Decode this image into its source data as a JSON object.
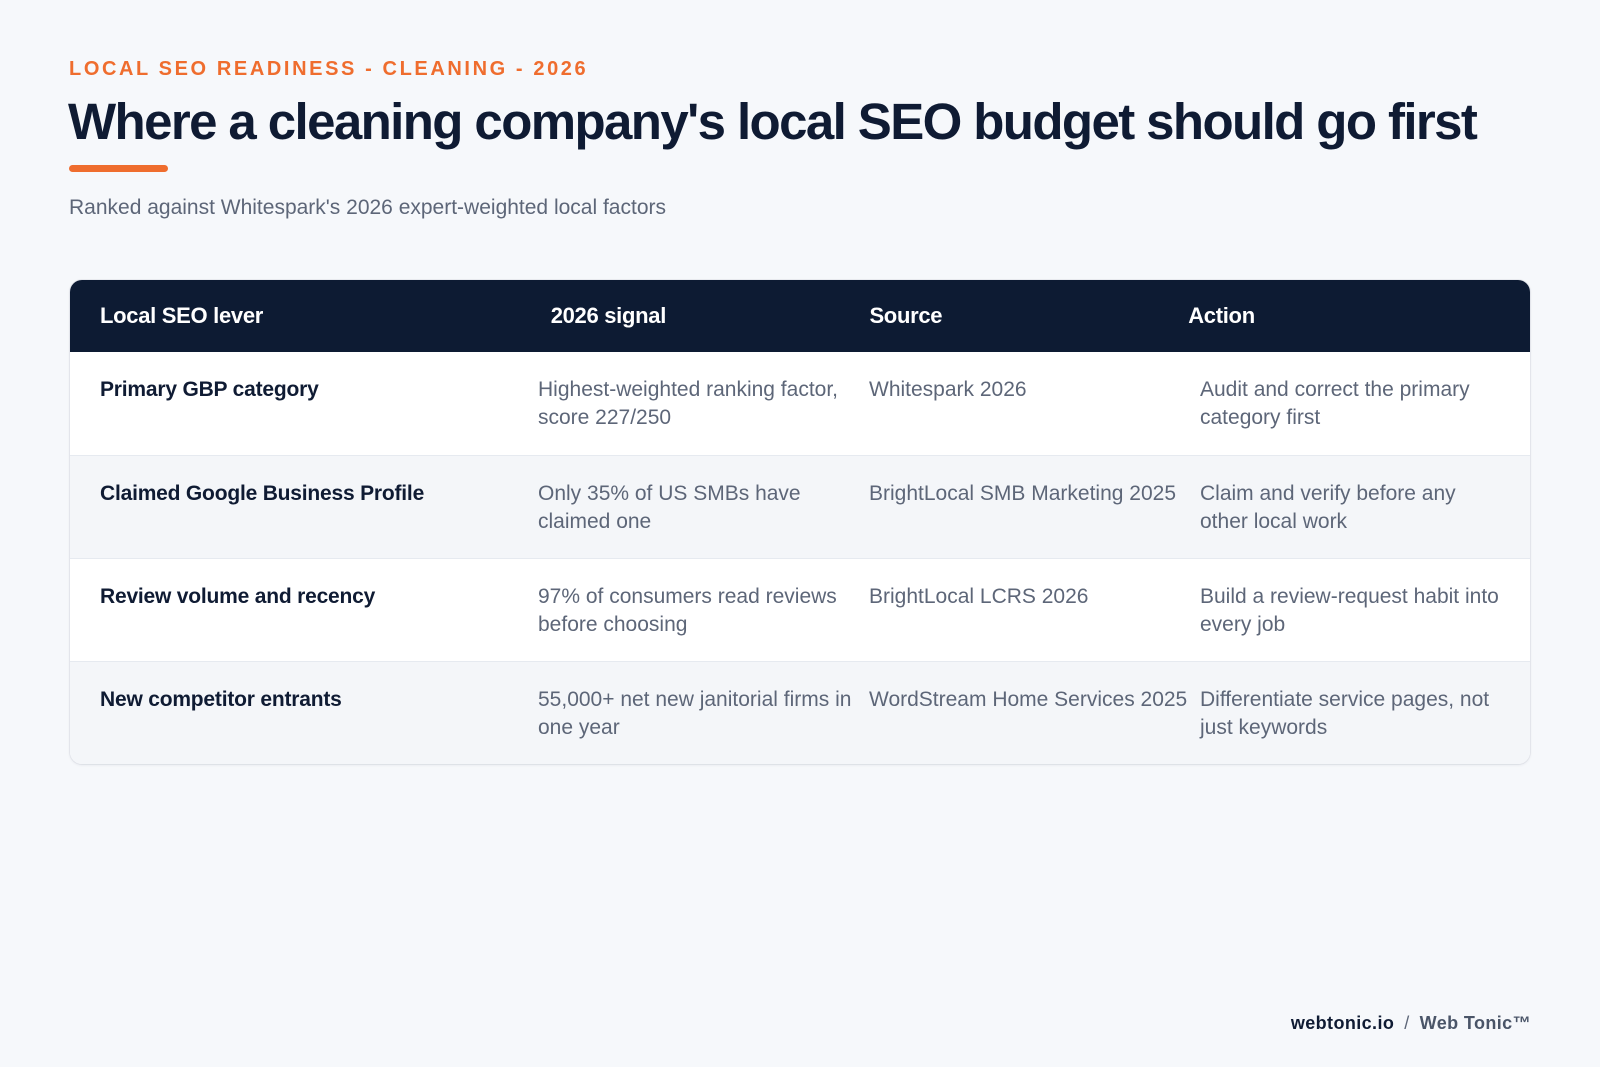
{
  "header": {
    "eyebrow": "LOCAL SEO READINESS - CLEANING - 2026",
    "title": "Where a cleaning company's local SEO budget should go first",
    "subtitle": "Ranked against Whitespark's 2026 expert-weighted local factors"
  },
  "table": {
    "columns": [
      "Local SEO lever",
      "2026 signal",
      "Source",
      "Action"
    ],
    "rows": [
      {
        "lever": "Primary GBP category",
        "signal": "Highest-weighted ranking factor, score 227/250",
        "source": "Whitespark 2026",
        "action": "Audit and correct the primary category first"
      },
      {
        "lever": "Claimed Google Business Profile",
        "signal": "Only 35% of US SMBs have claimed one",
        "source": "BrightLocal SMB Marketing 2025",
        "action": "Claim and verify before any other local work"
      },
      {
        "lever": "Review volume and recency",
        "signal": "97% of consumers read reviews before choosing",
        "source": "BrightLocal LCRS 2026",
        "action": "Build a review-request habit into every job"
      },
      {
        "lever": "New competitor entrants",
        "signal": "55,000+ net new janitorial firms in one year",
        "source": "WordStream Home Services 2025",
        "action": "Differentiate service pages, not just keywords"
      }
    ]
  },
  "footer": {
    "domain": "webtonic.io",
    "separator": "/",
    "brand": "Web Tonic™"
  },
  "colors": {
    "accent": "#ef6d2e",
    "navy": "#0d1b33",
    "background": "#f6f8fb"
  }
}
